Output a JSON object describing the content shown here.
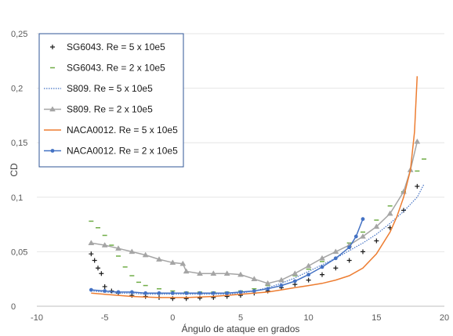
{
  "chart_data": {
    "type": "line",
    "title": "",
    "xlabel": "Ángulo de ataque en grados",
    "ylabel": "CD",
    "xlim": [
      -10,
      20
    ],
    "ylim": [
      0,
      0.25
    ],
    "x_ticks": [
      -10,
      -5,
      0,
      5,
      10,
      15,
      20
    ],
    "y_ticks": [
      0,
      0.05,
      0.1,
      0.15,
      0.2,
      0.25
    ],
    "x_tick_labels": [
      "-10",
      "-5",
      "0",
      "5",
      "10",
      "15",
      "20"
    ],
    "y_tick_labels": [
      "0",
      "0,05",
      "0,1",
      "0,15",
      "0,2",
      "0,25"
    ],
    "grid": "horizontal",
    "legend_position": "top-left",
    "series": [
      {
        "name": "SG6043. Re = 5 x 10e5",
        "style": "plus",
        "color": "#1a1a1a",
        "x": [
          -6,
          -5.75,
          -5.5,
          -5.25,
          -5,
          -4.5,
          -4,
          -3,
          -2,
          -1,
          0,
          1,
          2,
          3,
          4,
          5,
          6,
          7,
          8,
          9,
          10,
          11,
          12,
          13,
          14,
          15,
          16,
          17,
          18
        ],
        "y": [
          0.048,
          0.042,
          0.035,
          0.03,
          0.018,
          0.014,
          0.012,
          0.01,
          0.009,
          0.008,
          0.007,
          0.007,
          0.0075,
          0.008,
          0.009,
          0.01,
          0.012,
          0.014,
          0.017,
          0.02,
          0.024,
          0.029,
          0.035,
          0.042,
          0.05,
          0.06,
          0.072,
          0.088,
          0.11
        ]
      },
      {
        "name": "SG6043. Re = 2 x 10e5",
        "style": "dash",
        "color": "#70ad47",
        "x": [
          -6,
          -5.5,
          -5,
          -4.5,
          -4,
          -3.5,
          -3,
          -2.5,
          -2,
          -1,
          0,
          1,
          2,
          3,
          4,
          5,
          6,
          7,
          8,
          9,
          10,
          11,
          12,
          13,
          14,
          15,
          16,
          17,
          18,
          18.5
        ],
        "y": [
          0.078,
          0.072,
          0.065,
          0.056,
          0.046,
          0.036,
          0.028,
          0.022,
          0.019,
          0.016,
          0.014,
          0.013,
          0.013,
          0.013,
          0.013,
          0.014,
          0.016,
          0.019,
          0.023,
          0.028,
          0.034,
          0.041,
          0.049,
          0.058,
          0.068,
          0.079,
          0.092,
          0.105,
          0.124,
          0.135
        ]
      },
      {
        "name": "S809. Re = 5 x 10e5",
        "style": "dotted",
        "color": "#4472c4",
        "x": [
          -6,
          -5,
          -4,
          -3,
          -2,
          -1,
          0,
          1,
          2,
          3,
          4,
          5,
          6,
          7,
          8,
          9,
          10,
          11,
          12,
          13,
          14,
          15,
          16,
          17,
          18,
          18.5
        ],
        "y": [
          0.014,
          0.013,
          0.012,
          0.012,
          0.011,
          0.011,
          0.011,
          0.011,
          0.011,
          0.011,
          0.011,
          0.012,
          0.014,
          0.017,
          0.021,
          0.026,
          0.032,
          0.038,
          0.044,
          0.051,
          0.058,
          0.066,
          0.076,
          0.087,
          0.1,
          0.112
        ]
      },
      {
        "name": "S809. Re = 2 x 10e5",
        "style": "triangle",
        "color": "#a5a5a5",
        "x": [
          -6,
          -5,
          -4,
          -3,
          -2,
          -1,
          0,
          0.75,
          1,
          2,
          3,
          4,
          5,
          6,
          7,
          8,
          9,
          10,
          11,
          12,
          13,
          14,
          15,
          16,
          17,
          17.5,
          18
        ],
        "y": [
          0.058,
          0.056,
          0.053,
          0.05,
          0.047,
          0.043,
          0.04,
          0.039,
          0.032,
          0.03,
          0.03,
          0.03,
          0.029,
          0.025,
          0.021,
          0.024,
          0.03,
          0.037,
          0.044,
          0.05,
          0.056,
          0.064,
          0.073,
          0.085,
          0.105,
          0.125,
          0.151
        ]
      },
      {
        "name": "NACA0012. Re = 5 x 10e5",
        "style": "line",
        "color": "#ed7d31",
        "x": [
          -6,
          -5,
          -4,
          -3,
          -2,
          -1,
          0,
          1,
          2,
          3,
          4,
          5,
          6,
          7,
          8,
          9,
          10,
          11,
          12,
          13,
          14,
          15,
          16,
          16.5,
          17,
          17.5,
          17.8,
          18
        ],
        "y": [
          0.012,
          0.011,
          0.01,
          0.009,
          0.0085,
          0.008,
          0.008,
          0.008,
          0.0085,
          0.009,
          0.01,
          0.011,
          0.012,
          0.013,
          0.015,
          0.017,
          0.019,
          0.021,
          0.024,
          0.028,
          0.035,
          0.048,
          0.068,
          0.082,
          0.1,
          0.125,
          0.16,
          0.211
        ]
      },
      {
        "name": "NACA0012. Re = 2 x 10e5",
        "style": "circle",
        "color": "#4472c4",
        "x": [
          -6,
          -5,
          -4,
          -3,
          -2,
          -1,
          0,
          1,
          2,
          3,
          4,
          5,
          6,
          7,
          8,
          9,
          10,
          11,
          12,
          13,
          13.5,
          14
        ],
        "y": [
          0.015,
          0.014,
          0.013,
          0.013,
          0.012,
          0.012,
          0.012,
          0.012,
          0.012,
          0.012,
          0.012,
          0.013,
          0.014,
          0.016,
          0.019,
          0.023,
          0.029,
          0.036,
          0.044,
          0.054,
          0.064,
          0.08
        ]
      }
    ]
  }
}
